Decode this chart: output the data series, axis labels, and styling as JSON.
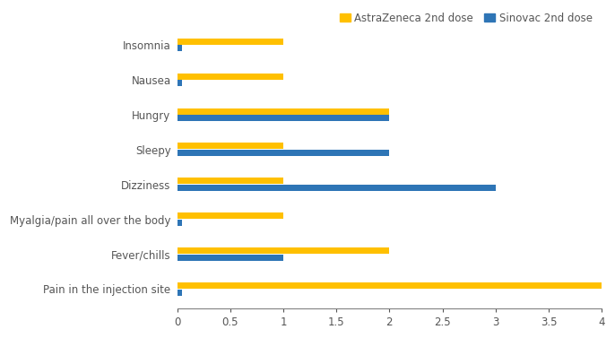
{
  "categories": [
    "Pain in the injection site",
    "Fever/chills",
    "Myalgia/pain all over the body",
    "Dizziness",
    "Sleepy",
    "Hungry",
    "Nausea",
    "Insomnia"
  ],
  "astrazeneca": [
    4.0,
    2.0,
    1.0,
    1.0,
    1.0,
    2.0,
    1.0,
    1.0
  ],
  "sinovac": [
    0.05,
    1.0,
    0.05,
    3.0,
    2.0,
    2.0,
    0.05,
    0.05
  ],
  "astrazeneca_color": "#FFC000",
  "sinovac_color": "#2E75B6",
  "xlim": [
    0,
    4
  ],
  "xticks": [
    0,
    0.5,
    1,
    1.5,
    2,
    2.5,
    3,
    3.5,
    4
  ],
  "xtick_labels": [
    "0",
    "0.5",
    "1",
    "1.5",
    "2",
    "2.5",
    "3",
    "3.5",
    "4"
  ],
  "legend_az": "AstraZeneca 2nd dose",
  "legend_sinovac": "Sinovac 2nd dose",
  "bar_height": 0.18,
  "bar_gap": 0.01,
  "background_color": "#FFFFFF",
  "label_fontsize": 8.5,
  "tick_fontsize": 8.5,
  "legend_fontsize": 8.5,
  "axis_color": "#808080",
  "text_color": "#555555"
}
